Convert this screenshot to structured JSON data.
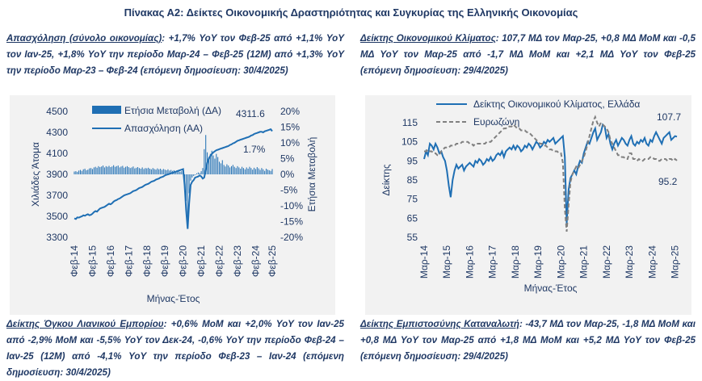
{
  "title": "Πίνακας Α2: Δείκτες Οικονομικής Δραστηριότητας και Συγκυρίας της Ελληνικής Οικονομίας",
  "paragraphs": {
    "employment": {
      "head": "Απασχόληση (σύνολο οικονομίας)",
      "text": ": +1,7% YoY τον Φεβ-25 από +1,1% YoY τον Ιαν-25, +1,8% YoY την περίοδο Μαρ-24 – Φεβ-25 (12M) από +1,3% YoY την περίοδο Μαρ-23 – Φεβ-24 (επόμενη δημοσίευση: 30/4/2025)"
    },
    "climate": {
      "head": "Δείκτης Οικονομικού Κλίματος",
      "text": ": 107,7 ΜΔ τον Μαρ-25, +0,8 ΜΔ MoM και -0,5 ΜΔ YoY τον Μαρ-25 από -1,7 ΜΔ MoM και +2,1 ΜΔ YoY τον Φεβ-25 (επόμενη δημοσίευση: 29/4/2025)"
    },
    "retail": {
      "head": "Δείκτης Όγκου Λιανικού Εμπορίου",
      "text": ": +0,6% MoM και +2,0% YoY τον Ιαν-25 από -2,9% MoM και -5,5% YoY τον Δεκ-24, -0,6% YoY την περίοδο Φεβ-24 – Ιαν-25 (12M) από -4,1% YoY την περίοδο Φεβ-23 – Ιαν-24 (επόμενη δημοσίευση: 30/4/2025)"
    },
    "consumer": {
      "head": "Δείκτης Εμπιστοσύνης Καταναλωτή",
      "text": ": -43,7 ΜΔ τον Μαρ-25, -1,8 ΜΔ MoM και +0,8 ΜΔ YoY τον Μαρ-25 από +1,8 ΜΔ MoM και +5,2 ΜΔ YoY τον Φεβ-25 (επόμενη δημοσίευση: 29/4/2025)"
    }
  },
  "chart_data": [
    {
      "type": "bar+line",
      "title": "",
      "xlabel": "Μήνας-Έτος",
      "ylabel_left": "Χιλιάδες Άτομα",
      "ylabel_right": "Ετήσια Μεταβολή",
      "ylim_left": [
        3300,
        4500
      ],
      "ylim_right": [
        -20,
        20
      ],
      "yticks_left": [
        "4500",
        "4300",
        "4100",
        "3900",
        "3700",
        "3500",
        "3300"
      ],
      "yticks_right": [
        "20%",
        "15%",
        "10%",
        "5%",
        "0%",
        "-5%",
        "-10%",
        "-15%",
        "-20%"
      ],
      "xticks": [
        "Φεβ-15",
        "Φεβ-16",
        "Φεβ-17",
        "Φεβ-18",
        "Φεβ-19",
        "Φεβ-20",
        "Φεβ-21",
        "Φεβ-22",
        "Φεβ-23",
        "Φεβ-24",
        "Φεβ-25"
      ],
      "first_tick": "Φεβ-14",
      "legend": [
        "Ετήσια Μεταβολή (ΔΑ)",
        "Απασχόληση (ΑΑ)"
      ],
      "annotations": [
        "4311.6",
        "1.7%"
      ],
      "series": [
        {
          "name": "Απασχόληση (ΑΑ)",
          "axis": "left",
          "values": [
            3480,
            3475,
            3490,
            3488,
            3495,
            3500,
            3510,
            3505,
            3515,
            3520,
            3510,
            3515,
            3525,
            3540,
            3550,
            3545,
            3560,
            3575,
            3580,
            3585,
            3590,
            3600,
            3610,
            3620,
            3615,
            3625,
            3640,
            3650,
            3655,
            3665,
            3670,
            3680,
            3690,
            3700,
            3705,
            3710,
            3715,
            3720,
            3730,
            3740,
            3745,
            3750,
            3760,
            3770,
            3775,
            3780,
            3790,
            3800,
            3805,
            3810,
            3820,
            3830,
            3835,
            3840,
            3850,
            3855,
            3860,
            3870,
            3875,
            3880,
            3890,
            3895,
            3900,
            3905,
            3910,
            3915,
            3920,
            3925,
            3930,
            3935,
            3940,
            3945,
            3950,
            3800,
            3560,
            3380,
            3620,
            3800,
            3830,
            3845,
            3870,
            3875,
            3880,
            3890,
            3880,
            3860,
            3870,
            3940,
            4010,
            4050,
            4075,
            4095,
            4110,
            4120,
            4130,
            4135,
            4140,
            4145,
            4150,
            4155,
            4160,
            4165,
            4170,
            4180,
            4185,
            4195,
            4200,
            4210,
            4220,
            4225,
            4230,
            4235,
            4240,
            4245,
            4250,
            4255,
            4260,
            4270,
            4275,
            4285,
            4290,
            4295,
            4300,
            4305,
            4305,
            4300,
            4310,
            4315,
            4320,
            4325,
            4330,
            4311.6
          ]
        },
        {
          "name": "Ετήσια Μεταβολή (ΔΑ)",
          "axis": "right",
          "values": [
            0.9,
            1.0,
            0.8,
            1.2,
            1.4,
            1.1,
            1.6,
            1.8,
            1.3,
            1.5,
            1.9,
            2.0,
            1.7,
            2.2,
            2.4,
            2.1,
            2.6,
            2.3,
            2.5,
            2.8,
            2.2,
            2.6,
            2.4,
            2.7,
            2.3,
            2.5,
            2.9,
            2.4,
            2.6,
            2.8,
            2.2,
            2.5,
            2.7,
            2.1,
            2.4,
            2.6,
            2.3,
            2.0,
            2.2,
            2.5,
            1.9,
            2.1,
            2.3,
            2.0,
            1.8,
            2.2,
            1.7,
            2.0,
            1.9,
            2.1,
            1.8,
            1.6,
            2.0,
            1.7,
            1.5,
            1.9,
            1.6,
            1.8,
            1.4,
            1.7,
            1.5,
            1.3,
            1.6,
            1.2,
            1.4,
            1.1,
            1.3,
            1.0,
            1.2,
            0.9,
            0.8,
            1.0,
            0.6,
            -2.5,
            -8.5,
            -14.5,
            -6.0,
            -2.0,
            -1.0,
            -0.5,
            0.0,
            0.3,
            0.6,
            0.4,
            1.0,
            2.0,
            8.0,
            12.5,
            7.0,
            5.5,
            6.5,
            7.5,
            6.0,
            5.0,
            6.5,
            5.5,
            4.0,
            3.5,
            4.5,
            3.0,
            2.5,
            3.2,
            2.8,
            2.2,
            2.6,
            3.0,
            2.4,
            2.0,
            2.6,
            2.2,
            1.8,
            2.4,
            2.0,
            1.6,
            2.2,
            1.8,
            2.4,
            2.0,
            1.5,
            2.1,
            1.7,
            2.3,
            1.9,
            1.4,
            2.0,
            1.6,
            1.1,
            1.8,
            1.5,
            1.3,
            1.1,
            1.7
          ]
        }
      ]
    },
    {
      "type": "line",
      "title": "",
      "xlabel": "Μήνας-Έτος",
      "ylabel": "Δείκτης",
      "ylim": [
        55,
        115
      ],
      "yticks": [
        "115",
        "105",
        "95",
        "85",
        "75",
        "65",
        "55"
      ],
      "xticks": [
        "Μαρ-14",
        "Μαρ-15",
        "Μαρ-16",
        "Μαρ-17",
        "Μαρ-18",
        "Μαρ-19",
        "Μαρ-20",
        "Μαρ-21",
        "Μαρ-22",
        "Μαρ-23",
        "Μαρ-24",
        "Μαρ-25"
      ],
      "legend": [
        "Δείκτης Οικονομικού Κλίματος, Ελλάδα",
        "Ευρωζώνη"
      ],
      "annotations": [
        "107.7",
        "95.2"
      ],
      "series": [
        {
          "name": "Δείκτης Οικονομικού Κλίματος, Ελλάδα",
          "values": [
            96,
            100,
            98,
            104,
            103,
            101,
            104,
            102,
            99,
            100,
            97,
            95,
            90,
            82,
            76,
            85,
            90,
            93,
            91,
            92,
            93,
            90,
            92,
            93,
            94,
            93,
            92,
            95,
            94,
            96,
            95,
            93,
            94,
            96,
            95,
            97,
            95,
            96,
            98,
            99,
            98,
            100,
            97,
            100,
            101,
            102,
            101,
            103,
            101,
            103,
            102,
            100,
            101,
            103,
            102,
            104,
            103,
            101,
            103,
            105,
            104,
            102,
            103,
            105,
            104,
            106,
            105,
            106,
            107,
            104,
            105,
            106,
            107,
            108,
            97,
            62,
            80,
            86,
            88,
            90,
            88,
            92,
            95,
            94,
            99,
            102,
            105,
            104,
            107,
            110,
            112,
            106,
            108,
            110,
            114,
            113,
            107,
            109,
            104,
            101,
            104,
            106,
            103,
            105,
            107,
            106,
            104,
            103,
            106,
            108,
            104,
            103,
            105,
            104,
            106,
            105,
            107,
            104,
            103,
            106,
            105,
            108,
            110,
            108,
            106,
            104,
            107,
            108,
            109,
            110,
            106,
            107,
            108,
            107.7
          ]
        },
        {
          "name": "Ευρωζώνη",
          "values": [
            100,
            100,
            101,
            100,
            100,
            99,
            99,
            98,
            98,
            100,
            101,
            102,
            102,
            102,
            103,
            103,
            103,
            104,
            104,
            104,
            105,
            105,
            105,
            105,
            104,
            104,
            103,
            104,
            104,
            104,
            104,
            104,
            104,
            105,
            105,
            105,
            106,
            107,
            108,
            109,
            110,
            111,
            112,
            112,
            113,
            113,
            113,
            114,
            113,
            112,
            112,
            111,
            111,
            111,
            110,
            110,
            109,
            108,
            107,
            106,
            105,
            104,
            104,
            103,
            103,
            102,
            101,
            101,
            100,
            100,
            100,
            99,
            99,
            94,
            70,
            58,
            72,
            84,
            88,
            90,
            92,
            91,
            93,
            95,
            97,
            100,
            104,
            108,
            112,
            116,
            118,
            115,
            113,
            115,
            114,
            113,
            112,
            110,
            106,
            104,
            102,
            100,
            98,
            98,
            97,
            97,
            96,
            96,
            99,
            99,
            96,
            96,
            95,
            96,
            95,
            95,
            96,
            96,
            96,
            97,
            97,
            96,
            96,
            95,
            95,
            96,
            96,
            96,
            95,
            96,
            96,
            95,
            96,
            95.2
          ]
        }
      ]
    }
  ]
}
